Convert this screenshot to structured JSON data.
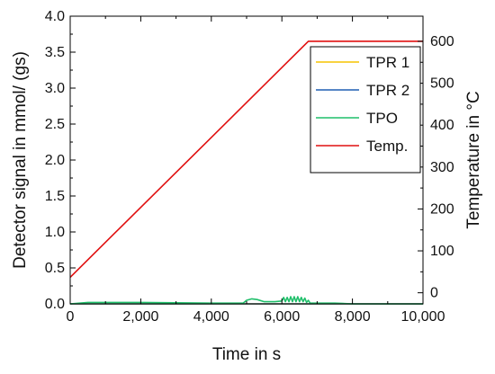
{
  "chart_data": {
    "type": "line",
    "xlabel": "Time in s",
    "ylabel_left": "Detector signal in mmol/ (gs)",
    "ylabel_right": "Temperature in °C",
    "xlim": [
      0,
      10000
    ],
    "ylim_left": [
      0,
      4.0
    ],
    "ylim_right": [
      -26.5,
      660
    ],
    "x_ticks": [
      0,
      2000,
      4000,
      6000,
      8000,
      10000
    ],
    "x_tick_labels": [
      "0",
      "2,000",
      "4,000",
      "6,000",
      "8,000",
      "10,000"
    ],
    "y_left_ticks": [
      0,
      0.5,
      1.0,
      1.5,
      2.0,
      2.5,
      3.0,
      3.5,
      4.0
    ],
    "y_left_tick_labels": [
      "0.0",
      "0.5",
      "1.0",
      "1.5",
      "2.0",
      "2.5",
      "3.0",
      "3.5",
      "4.0"
    ],
    "y_right_ticks": [
      0,
      100,
      200,
      300,
      400,
      500,
      600
    ],
    "y_right_tick_labels": [
      "0",
      "100",
      "200",
      "300",
      "400",
      "500",
      "600"
    ],
    "grid": false,
    "legend_position": "top-right",
    "series": [
      {
        "name": "TPR 1",
        "axis": "left",
        "color": "#f5c400",
        "points": [
          [
            0,
            0.0
          ],
          [
            10000,
            0.0
          ]
        ]
      },
      {
        "name": "TPR 2",
        "axis": "left",
        "color": "#1f5fb4",
        "points": [
          [
            0,
            0.0
          ],
          [
            10000,
            0.0
          ]
        ]
      },
      {
        "name": "TPO",
        "axis": "left",
        "color": "#1fbf6a",
        "points": [
          [
            0,
            0.0
          ],
          [
            500,
            0.02
          ],
          [
            1000,
            0.02
          ],
          [
            2000,
            0.02
          ],
          [
            3000,
            0.015
          ],
          [
            4000,
            0.01
          ],
          [
            4900,
            0.01
          ],
          [
            5000,
            0.05
          ],
          [
            5150,
            0.07
          ],
          [
            5300,
            0.06
          ],
          [
            5500,
            0.03
          ],
          [
            5800,
            0.03
          ],
          [
            6000,
            0.04
          ],
          [
            6050,
            0.09
          ],
          [
            6100,
            0.03
          ],
          [
            6150,
            0.09
          ],
          [
            6200,
            0.03
          ],
          [
            6250,
            0.1
          ],
          [
            6300,
            0.03
          ],
          [
            6350,
            0.1
          ],
          [
            6400,
            0.03
          ],
          [
            6450,
            0.1
          ],
          [
            6500,
            0.03
          ],
          [
            6550,
            0.09
          ],
          [
            6600,
            0.03
          ],
          [
            6650,
            0.08
          ],
          [
            6700,
            0.02
          ],
          [
            6750,
            0.05
          ],
          [
            6800,
            0.01
          ],
          [
            7500,
            0.01
          ],
          [
            8000,
            0.0
          ],
          [
            10000,
            0.0
          ]
        ]
      },
      {
        "name": "Temp.",
        "axis": "right",
        "color": "#e01010",
        "points": [
          [
            0,
            37
          ],
          [
            6750,
            600
          ],
          [
            10000,
            600
          ]
        ]
      }
    ]
  }
}
